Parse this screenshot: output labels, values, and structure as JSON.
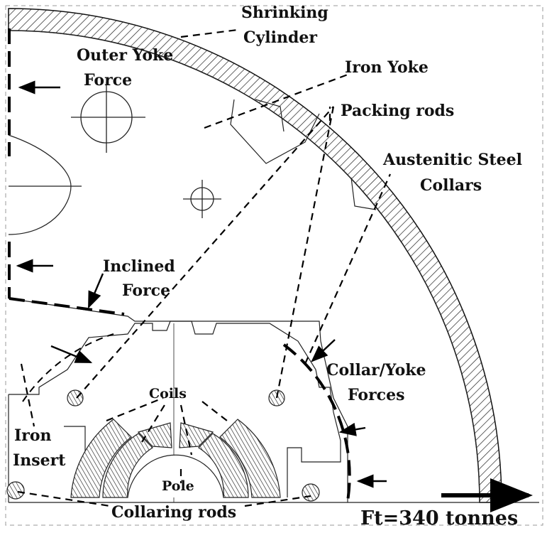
{
  "diagram": {
    "labels": {
      "shrinking_cylinder_1": "Shrinking",
      "shrinking_cylinder_2": "Cylinder",
      "outer_yoke_force_1": "Outer Yoke",
      "outer_yoke_force_2": "Force",
      "iron_yoke": "Iron Yoke",
      "packing_rods": "Packing rods",
      "austenitic_1": "Austenitic Steel",
      "austenitic_2": "Collars",
      "inclined_force_1": "Inclined",
      "inclined_force_2": "Force",
      "collar_yoke_1": "Collar/Yoke",
      "collar_yoke_2": "Forces",
      "coils": "Coils",
      "iron_insert_1": "Iron",
      "iron_insert_2": "Insert",
      "pole": "Pole",
      "collaring_rods": "Collaring rods",
      "ft": "Ft=340 tonnes"
    }
  }
}
